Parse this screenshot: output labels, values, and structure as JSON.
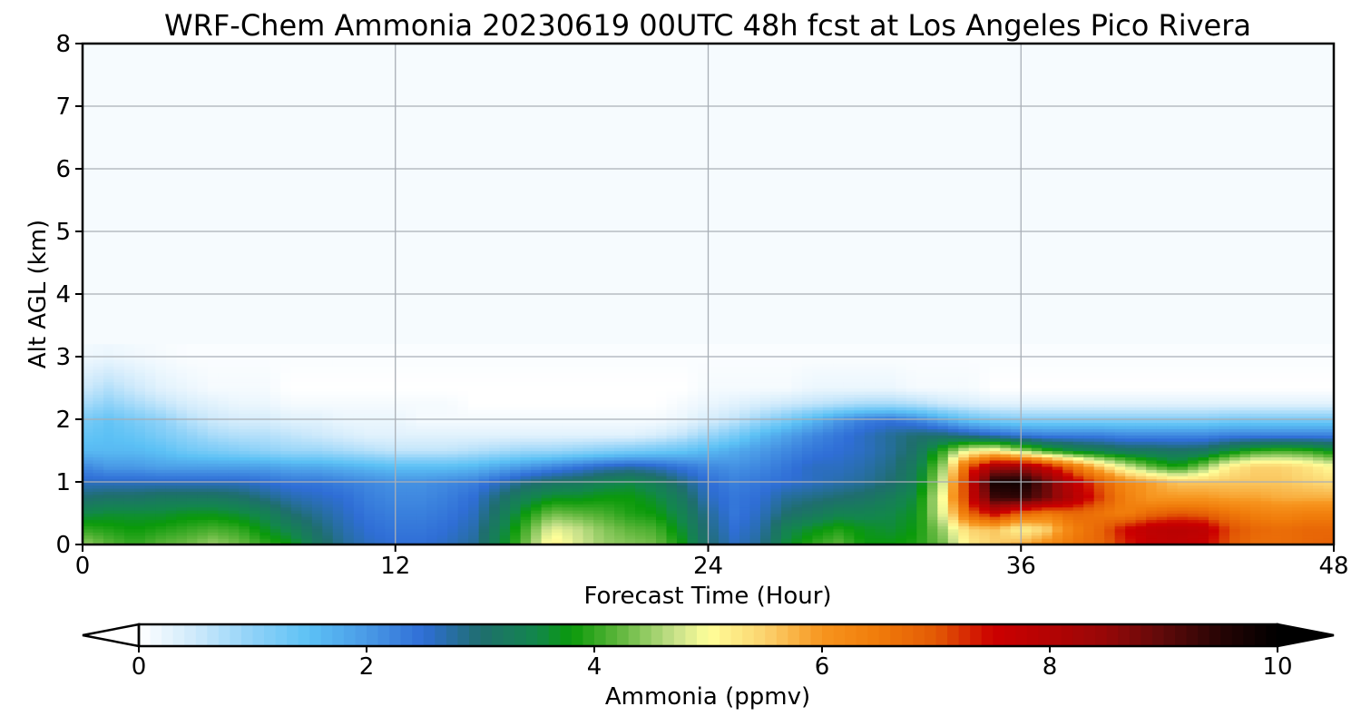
{
  "chart_data": {
    "type": "heatmap",
    "title": "WRF-Chem Ammonia  20230619 00UTC 48h fcst at Los Angeles Pico Rivera",
    "xlabel": "Forecast Time (Hour)",
    "ylabel": "Alt AGL (km)",
    "xlim": [
      0,
      48
    ],
    "ylim": [
      0,
      8
    ],
    "x_ticks": [
      0,
      12,
      24,
      36,
      48
    ],
    "y_ticks": [
      0,
      1,
      2,
      3,
      4,
      5,
      6,
      7,
      8
    ],
    "grid": true,
    "colorbar": {
      "label": "Ammonia  (ppmv)",
      "range": [
        0,
        10
      ],
      "ticks": [
        0,
        2,
        4,
        6,
        8,
        10
      ],
      "extend": "both",
      "orientation": "horizontal",
      "placement": "bottom",
      "colors": [
        {
          "v": 0.0,
          "c": "#ffffff"
        },
        {
          "v": 0.5,
          "c": "#cde9fb"
        },
        {
          "v": 1.0,
          "c": "#8fd2f8"
        },
        {
          "v": 1.5,
          "c": "#5cc1f5"
        },
        {
          "v": 2.0,
          "c": "#4a9ae6"
        },
        {
          "v": 2.5,
          "c": "#2f6ed6"
        },
        {
          "v": 3.0,
          "c": "#1f6e6e"
        },
        {
          "v": 3.5,
          "c": "#12874b"
        },
        {
          "v": 3.8,
          "c": "#0a9a0a"
        },
        {
          "v": 4.2,
          "c": "#5cb53a"
        },
        {
          "v": 4.7,
          "c": "#c5e089"
        },
        {
          "v": 5.0,
          "c": "#ffff9a"
        },
        {
          "v": 5.5,
          "c": "#fbd26e"
        },
        {
          "v": 6.0,
          "c": "#f7951e"
        },
        {
          "v": 6.5,
          "c": "#f07b0a"
        },
        {
          "v": 7.0,
          "c": "#e35a05"
        },
        {
          "v": 7.5,
          "c": "#cc0000"
        },
        {
          "v": 8.0,
          "c": "#b40303"
        },
        {
          "v": 8.5,
          "c": "#960808"
        },
        {
          "v": 9.0,
          "c": "#5e0a0a"
        },
        {
          "v": 9.5,
          "c": "#260404"
        },
        {
          "v": 10.0,
          "c": "#000000"
        }
      ]
    },
    "field": {
      "x": [
        0,
        1,
        2,
        3,
        4,
        5,
        6,
        7,
        8,
        9,
        10,
        11,
        12,
        13,
        14,
        15,
        16,
        17,
        18,
        19,
        20,
        21,
        22,
        23,
        24,
        25,
        26,
        27,
        28,
        29,
        30,
        31,
        32,
        33,
        34,
        35,
        36,
        37,
        38,
        39,
        40,
        41,
        42,
        43,
        44,
        45,
        46,
        47,
        48
      ],
      "y": [
        0,
        0.25,
        0.5,
        0.75,
        1.0,
        1.25,
        1.5,
        1.75,
        2.0,
        2.25,
        2.5,
        3.0,
        4.0,
        8.0
      ],
      "values": [
        [
          4.5,
          4.2,
          4.0,
          4.2,
          4.3,
          4.5,
          4.3,
          4.0,
          3.8,
          3.2,
          2.8,
          2.6,
          2.5,
          2.5,
          2.6,
          2.8,
          3.5,
          4.3,
          5.2,
          4.8,
          4.5,
          4.4,
          4.3,
          3.8,
          3.0,
          2.6,
          2.8,
          3.6,
          4.0,
          4.2,
          3.8,
          3.8,
          3.9,
          4.3,
          5.2,
          5.5,
          5.8,
          6.2,
          6.6,
          6.8,
          7.3,
          7.7,
          7.8,
          7.6,
          7.0,
          6.7,
          6.7,
          6.8,
          6.9
        ],
        [
          4.0,
          3.9,
          3.8,
          3.9,
          4.0,
          4.1,
          4.0,
          3.7,
          3.4,
          3.0,
          2.7,
          2.5,
          2.4,
          2.4,
          2.5,
          2.7,
          3.4,
          4.1,
          4.9,
          4.7,
          4.4,
          4.2,
          4.1,
          3.6,
          2.9,
          2.5,
          2.7,
          3.4,
          3.7,
          3.9,
          3.7,
          3.6,
          3.8,
          4.5,
          5.5,
          5.6,
          5.1,
          5.5,
          6.4,
          6.8,
          7.5,
          7.8,
          7.9,
          7.8,
          7.1,
          6.8,
          6.7,
          6.8,
          6.8
        ],
        [
          3.5,
          3.6,
          3.6,
          3.6,
          3.7,
          3.7,
          3.6,
          3.4,
          3.0,
          2.8,
          2.6,
          2.4,
          2.3,
          2.3,
          2.4,
          2.6,
          3.2,
          3.8,
          4.3,
          4.2,
          4.1,
          3.9,
          3.8,
          3.4,
          2.8,
          2.4,
          2.6,
          3.0,
          3.2,
          3.4,
          3.4,
          3.5,
          3.7,
          4.9,
          6.8,
          7.6,
          6.8,
          6.5,
          6.8,
          6.6,
          6.4,
          6.8,
          7.0,
          6.9,
          6.6,
          6.4,
          6.3,
          6.4,
          6.4
        ],
        [
          3.0,
          3.1,
          3.1,
          3.2,
          3.2,
          3.2,
          3.1,
          2.9,
          2.7,
          2.6,
          2.5,
          2.3,
          2.2,
          2.2,
          2.3,
          2.5,
          3.0,
          3.4,
          3.7,
          3.7,
          3.8,
          3.8,
          3.6,
          3.2,
          2.6,
          2.4,
          2.5,
          2.8,
          2.9,
          3.0,
          3.1,
          3.3,
          3.6,
          5.0,
          7.5,
          9.3,
          9.4,
          8.8,
          8.0,
          7.2,
          6.4,
          6.0,
          6.0,
          6.0,
          5.9,
          5.9,
          5.8,
          5.8,
          5.8
        ],
        [
          2.6,
          2.6,
          2.6,
          2.6,
          2.6,
          2.6,
          2.6,
          2.5,
          2.4,
          2.4,
          2.3,
          2.2,
          2.1,
          2.1,
          2.2,
          2.3,
          2.6,
          2.9,
          3.1,
          3.2,
          3.4,
          3.5,
          3.3,
          2.9,
          2.5,
          2.3,
          2.4,
          2.5,
          2.6,
          2.7,
          2.8,
          3.0,
          3.4,
          4.8,
          7.6,
          9.7,
          9.8,
          8.9,
          7.8,
          7.0,
          6.2,
          5.9,
          5.6,
          5.6,
          5.6,
          5.6,
          5.6,
          5.5,
          5.4
        ],
        [
          2.2,
          2.0,
          2.0,
          1.9,
          1.9,
          1.9,
          1.9,
          1.9,
          1.8,
          1.8,
          1.7,
          1.6,
          1.5,
          1.5,
          1.5,
          1.6,
          1.8,
          2.0,
          2.2,
          2.4,
          2.6,
          2.7,
          2.6,
          2.4,
          2.2,
          2.1,
          2.2,
          2.4,
          2.6,
          2.6,
          2.7,
          2.9,
          3.3,
          4.5,
          7.0,
          8.3,
          8.4,
          7.6,
          6.6,
          5.6,
          4.8,
          4.2,
          3.8,
          4.4,
          5.2,
          5.5,
          5.5,
          5.3,
          5.0
        ],
        [
          1.6,
          1.6,
          1.6,
          1.5,
          1.3,
          1.2,
          1.1,
          1.0,
          0.9,
          0.9,
          0.8,
          0.7,
          0.6,
          0.6,
          0.6,
          0.7,
          0.8,
          0.9,
          0.9,
          1.0,
          1.1,
          1.2,
          1.3,
          1.4,
          1.6,
          1.8,
          2.0,
          2.2,
          2.4,
          2.5,
          2.6,
          2.8,
          3.1,
          4.0,
          5.0,
          5.2,
          4.6,
          4.0,
          3.6,
          3.4,
          3.2,
          3.2,
          3.1,
          3.2,
          3.6,
          4.0,
          4.1,
          4.0,
          3.7
        ],
        [
          1.4,
          1.5,
          1.4,
          1.2,
          1.0,
          0.8,
          0.7,
          0.7,
          0.6,
          0.5,
          0.4,
          0.3,
          0.3,
          0.3,
          0.3,
          0.3,
          0.3,
          0.3,
          0.3,
          0.3,
          0.3,
          0.3,
          0.4,
          0.6,
          0.9,
          1.2,
          1.6,
          1.9,
          2.2,
          2.4,
          2.6,
          2.8,
          3.0,
          3.0,
          2.8,
          2.6,
          2.4,
          2.3,
          2.3,
          2.3,
          2.2,
          2.2,
          2.2,
          2.2,
          2.3,
          2.3,
          2.3,
          2.3,
          2.3
        ],
        [
          1.2,
          1.4,
          1.2,
          1.0,
          0.7,
          0.5,
          0.4,
          0.4,
          0.3,
          0.3,
          0.2,
          0.2,
          0.2,
          0.1,
          0.1,
          0.1,
          0.1,
          0.1,
          0.1,
          0.1,
          0.1,
          0.1,
          0.1,
          0.2,
          0.4,
          0.6,
          0.9,
          1.2,
          1.6,
          2.0,
          2.3,
          2.4,
          2.2,
          1.8,
          1.4,
          1.2,
          1.1,
          1.1,
          1.1,
          1.1,
          1.1,
          1.1,
          1.1,
          1.1,
          1.2,
          1.2,
          1.2,
          1.2,
          1.2
        ],
        [
          0.8,
          1.0,
          0.8,
          0.6,
          0.4,
          0.3,
          0.2,
          0.2,
          0.1,
          0.1,
          0.1,
          0.1,
          0.1,
          0.1,
          0.1,
          0.0,
          0.0,
          0.0,
          0.0,
          0.0,
          0.0,
          0.0,
          0.0,
          0.1,
          0.2,
          0.3,
          0.4,
          0.5,
          0.6,
          0.7,
          0.8,
          0.8,
          0.7,
          0.5,
          0.4,
          0.3,
          0.3,
          0.3,
          0.3,
          0.3,
          0.3,
          0.3,
          0.3,
          0.3,
          0.3,
          0.3,
          0.3,
          0.3,
          0.3
        ],
        [
          0.5,
          0.7,
          0.5,
          0.3,
          0.2,
          0.1,
          0.1,
          0.1,
          0.0,
          0.0,
          0.0,
          0.0,
          0.0,
          0.0,
          0.0,
          0.0,
          0.0,
          0.0,
          0.0,
          0.0,
          0.0,
          0.0,
          0.0,
          0.0,
          0.1,
          0.1,
          0.1,
          0.1,
          0.2,
          0.2,
          0.2,
          0.2,
          0.1,
          0.1,
          0.1,
          0.0,
          0.0,
          0.0,
          0.0,
          0.0,
          0.0,
          0.0,
          0.0,
          0.0,
          0.0,
          0.0,
          0.0,
          0.0,
          0.0
        ],
        [
          0.15,
          0.2,
          0.15,
          0.1,
          0.05,
          0.05,
          0.05,
          0.05,
          0.05,
          0.05,
          0.05,
          0.05,
          0.05,
          0.05,
          0.05,
          0.05,
          0.05,
          0.05,
          0.05,
          0.05,
          0.05,
          0.05,
          0.05,
          0.05,
          0.05,
          0.05,
          0.05,
          0.05,
          0.05,
          0.05,
          0.05,
          0.05,
          0.05,
          0.05,
          0.05,
          0.05,
          0.05,
          0.05,
          0.05,
          0.05,
          0.05,
          0.05,
          0.05,
          0.05,
          0.05,
          0.05,
          0.05,
          0.05,
          0.05
        ],
        [
          0.05,
          0.05,
          0.05,
          0.05,
          0.05,
          0.05,
          0.05,
          0.05,
          0.05,
          0.05,
          0.05,
          0.05,
          0.05,
          0.05,
          0.05,
          0.05,
          0.05,
          0.05,
          0.05,
          0.05,
          0.05,
          0.05,
          0.05,
          0.05,
          0.05,
          0.05,
          0.05,
          0.05,
          0.05,
          0.05,
          0.05,
          0.05,
          0.05,
          0.05,
          0.05,
          0.05,
          0.05,
          0.05,
          0.05,
          0.05,
          0.05,
          0.05,
          0.05,
          0.05,
          0.05,
          0.05,
          0.05,
          0.05,
          0.05
        ],
        [
          0.05,
          0.05,
          0.05,
          0.05,
          0.05,
          0.05,
          0.05,
          0.05,
          0.05,
          0.05,
          0.05,
          0.05,
          0.05,
          0.05,
          0.05,
          0.05,
          0.05,
          0.05,
          0.05,
          0.05,
          0.05,
          0.05,
          0.05,
          0.05,
          0.05,
          0.05,
          0.05,
          0.05,
          0.05,
          0.05,
          0.05,
          0.05,
          0.05,
          0.05,
          0.05,
          0.05,
          0.05,
          0.05,
          0.05,
          0.05,
          0.05,
          0.05,
          0.05,
          0.05,
          0.05,
          0.05,
          0.05,
          0.05,
          0.05
        ]
      ]
    }
  }
}
